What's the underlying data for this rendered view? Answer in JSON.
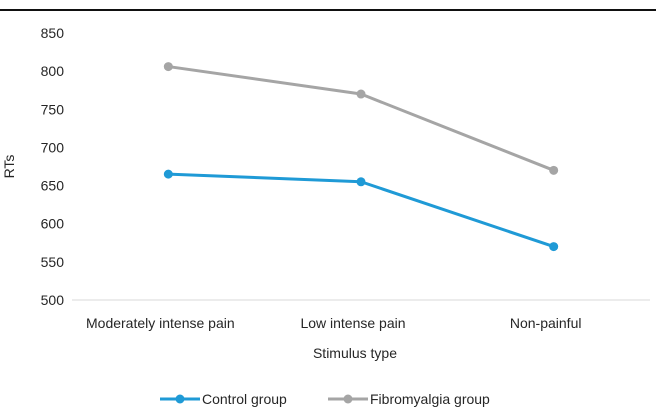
{
  "chart_data": {
    "type": "line",
    "title": "",
    "xlabel": "Stimulus type",
    "ylabel": "RTs",
    "categories": [
      "Moderately intense pain",
      "Low intense pain",
      "Non-painful"
    ],
    "ylim": [
      500,
      850
    ],
    "yticks": [
      500,
      550,
      600,
      650,
      700,
      750,
      800,
      850
    ],
    "grid": false,
    "legend_position": "bottom",
    "series": [
      {
        "name": "Control group",
        "values": [
          665,
          655,
          570
        ],
        "color": "#1f9ad6"
      },
      {
        "name": "Fibromyalgia group",
        "values": [
          806,
          770,
          670
        ],
        "color": "#a5a5a5"
      }
    ]
  }
}
